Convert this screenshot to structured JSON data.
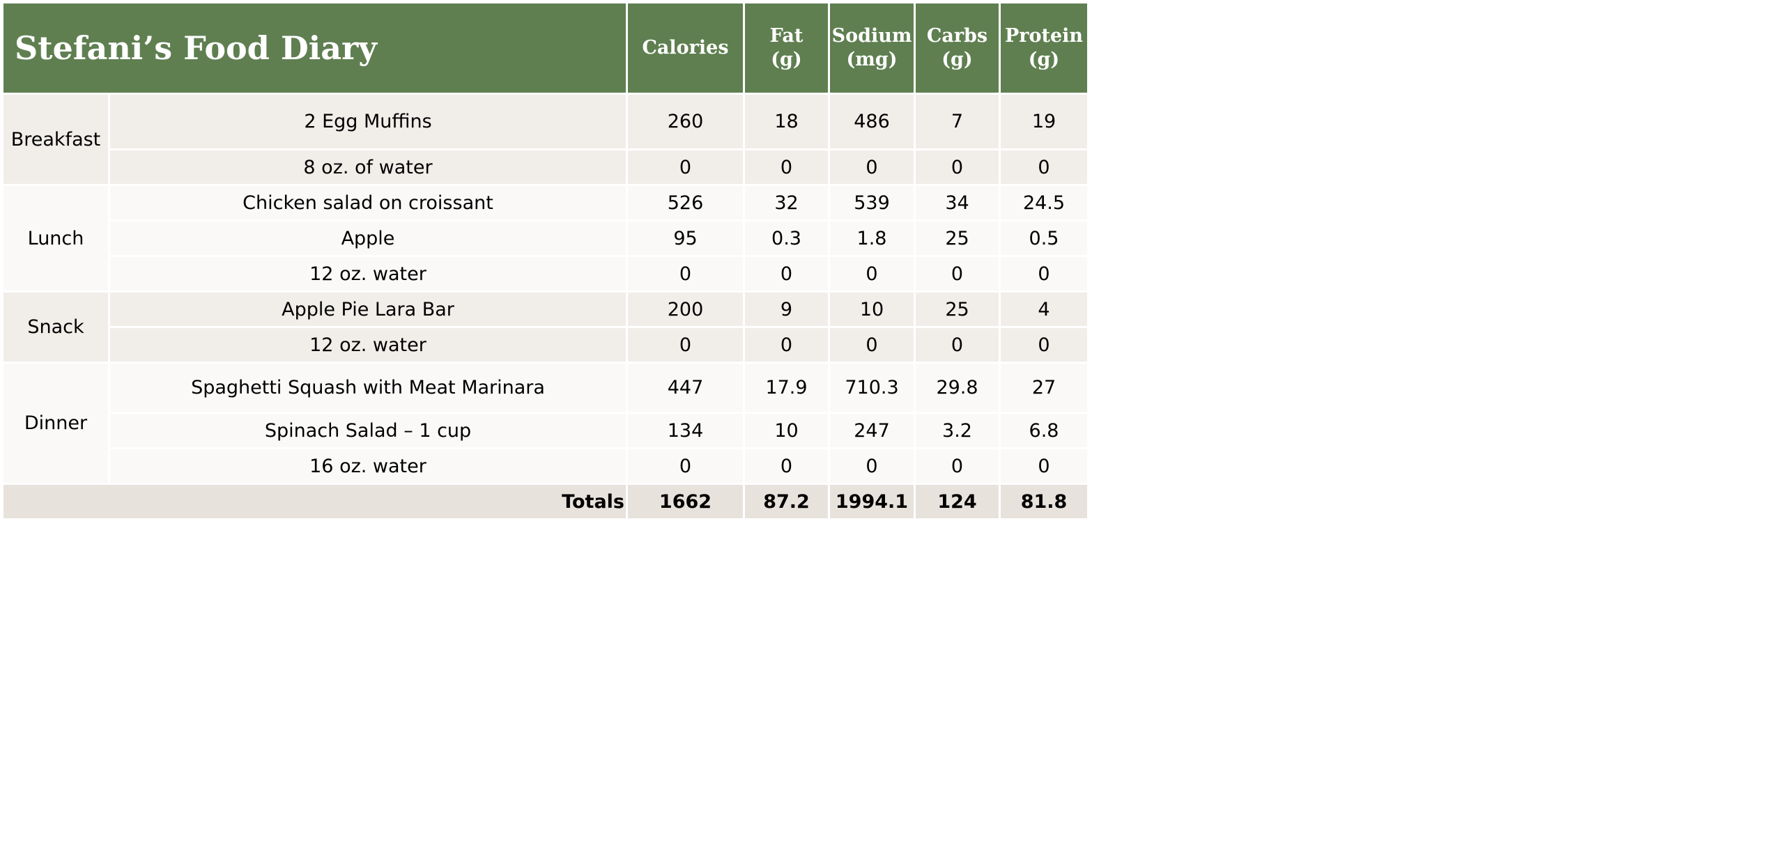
{
  "title": "Stefani’s Food Diary",
  "columns": [
    {
      "key": "calories",
      "lines": [
        "Calories"
      ]
    },
    {
      "key": "fat",
      "lines": [
        "Fat",
        "(g)"
      ]
    },
    {
      "key": "sodium",
      "lines": [
        "Sodium",
        "(mg)"
      ]
    },
    {
      "key": "carbs",
      "lines": [
        "Carbs",
        "(g)"
      ]
    },
    {
      "key": "protein",
      "lines": [
        "Protein",
        "(g)"
      ]
    }
  ],
  "meals": [
    {
      "name": "Breakfast",
      "items": [
        {
          "food": "2 Egg Muffins",
          "calories": "260",
          "fat": "18",
          "sodium": "486",
          "carbs": "7",
          "protein": "19"
        },
        {
          "food": "8 oz. of water",
          "calories": "0",
          "fat": "0",
          "sodium": "0",
          "carbs": "0",
          "protein": "0"
        }
      ]
    },
    {
      "name": "Lunch",
      "items": [
        {
          "food": "Chicken salad on croissant",
          "calories": "526",
          "fat": "32",
          "sodium": "539",
          "carbs": "34",
          "protein": "24.5"
        },
        {
          "food": "Apple",
          "calories": "95",
          "fat": "0.3",
          "sodium": "1.8",
          "carbs": "25",
          "protein": "0.5"
        },
        {
          "food": "12 oz. water",
          "calories": "0",
          "fat": "0",
          "sodium": "0",
          "carbs": "0",
          "protein": "0"
        }
      ]
    },
    {
      "name": "Snack",
      "items": [
        {
          "food": "Apple Pie Lara Bar",
          "calories": "200",
          "fat": "9",
          "sodium": "10",
          "carbs": "25",
          "protein": "4"
        },
        {
          "food": "12 oz. water",
          "calories": "0",
          "fat": "0",
          "sodium": "0",
          "carbs": "0",
          "protein": "0"
        }
      ]
    },
    {
      "name": "Dinner",
      "items": [
        {
          "food": "Spaghetti Squash with Meat Marinara",
          "calories": "447",
          "fat": "17.9",
          "sodium": "710.3",
          "carbs": "29.8",
          "protein": "27"
        },
        {
          "food": "Spinach Salad – 1 cup",
          "calories": "134",
          "fat": "10",
          "sodium": "247",
          "carbs": "3.2",
          "protein": "6.8"
        },
        {
          "food": "16 oz. water",
          "calories": "0",
          "fat": "0",
          "sodium": "0",
          "carbs": "0",
          "protein": "0"
        }
      ]
    }
  ],
  "totals": {
    "label": "Totals",
    "calories": "1662",
    "fat": "87.2",
    "sodium": "1994.1",
    "carbs": "124",
    "protein": "81.8"
  },
  "colors": {
    "header_bg": "#5f7f50",
    "header_text": "#ffffff",
    "band_dark": "#f1ede9",
    "band_light": "#faf9f8",
    "totals_bg": "#e8e2dd"
  }
}
